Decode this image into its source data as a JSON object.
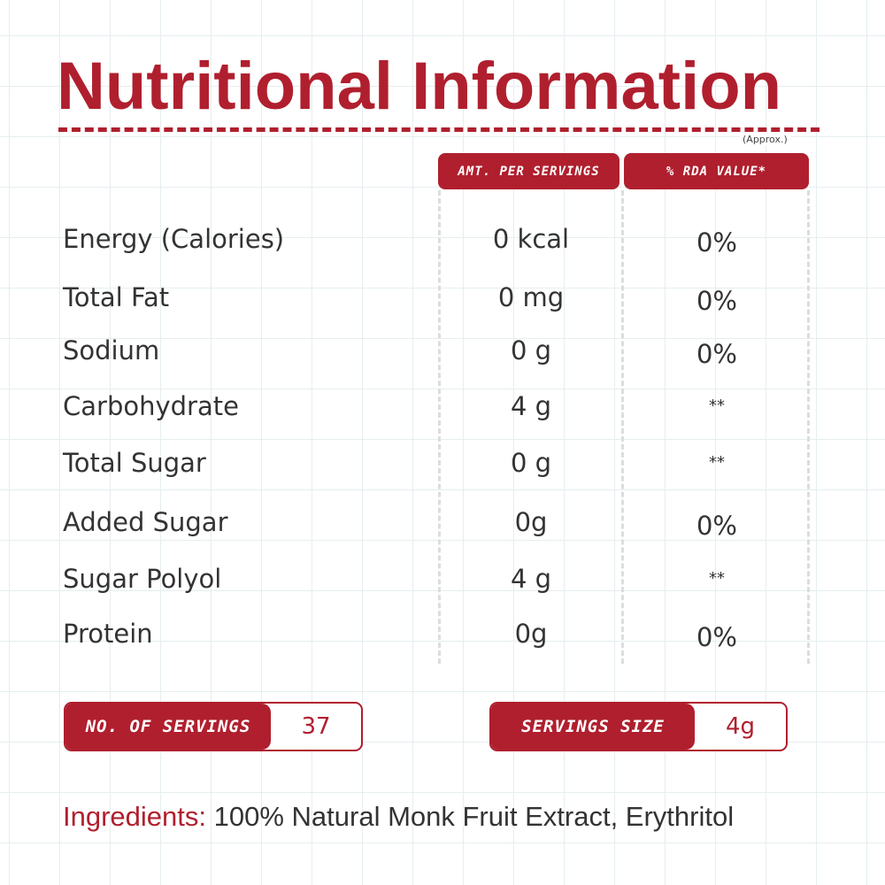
{
  "title": "Nutritional Information",
  "approx": "(Approx.)",
  "headers": {
    "amount": "AMT. PER SERVINGS",
    "rda": "% RDA VALUE*"
  },
  "rows": [
    {
      "label": "Energy (Calories)",
      "amount": "0 kcal",
      "rda": "0%"
    },
    {
      "label": "Total Fat",
      "amount": "0 mg",
      "rda": "0%"
    },
    {
      "label": "Sodium",
      "amount": "0 g",
      "rda": "0%"
    },
    {
      "label": "Carbohydrate",
      "amount": "4 g",
      "rda": "**"
    },
    {
      "label": "Total Sugar",
      "amount": "0 g",
      "rda": "**"
    },
    {
      "label": "Added Sugar",
      "amount": "0g",
      "rda": "0%"
    },
    {
      "label": "Sugar Polyol",
      "amount": "4 g",
      "rda": "**"
    },
    {
      "label": "Protein",
      "amount": "0g",
      "rda": "0%"
    }
  ],
  "servings": {
    "label": "NO. OF SERVINGS",
    "value": "37"
  },
  "serving_size": {
    "label": "SERVINGS SIZE",
    "value": "4g"
  },
  "ingredients": {
    "label": "Ingredients:",
    "value": "100% Natural Monk Fruit Extract, Erythritol"
  },
  "colors": {
    "accent": "#b01f2e"
  }
}
